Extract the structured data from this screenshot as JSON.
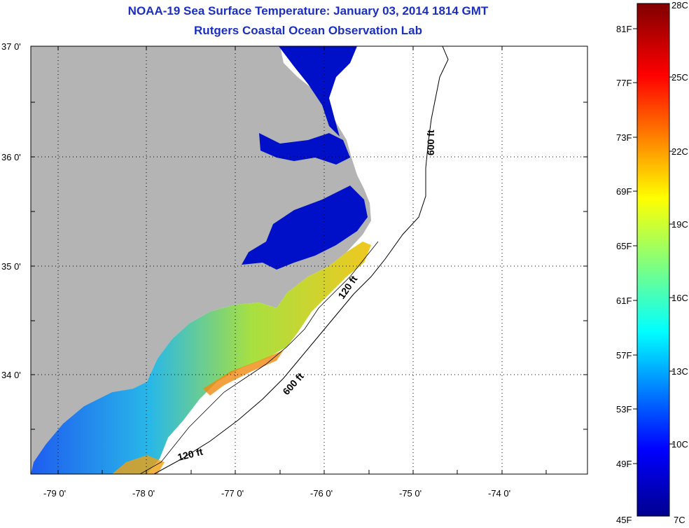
{
  "title": "NOAA-19 Sea Surface Temperature:  January 03, 2014 1814 GMT",
  "subtitle": "Rutgers Coastal Ocean Observation Lab",
  "lat_labels": [
    "37 0'",
    "36 0'",
    "35 0'",
    "34 0'"
  ],
  "lon_labels": [
    "-79 0'",
    "-78 0'",
    "-77 0'",
    "-76 0'",
    "-75 0'",
    "-74 0'"
  ],
  "isobath_labels": [
    "600 ft",
    "120 ft",
    "600 ft",
    "120 ft"
  ],
  "colorbar": {
    "fahrenheit": [
      "81F",
      "77F",
      "73F",
      "69F",
      "65F",
      "61F",
      "57F",
      "53F",
      "49F",
      "45F"
    ],
    "celsius": [
      "28C",
      "25C",
      "22C",
      "19C",
      "16C",
      "13C",
      "10C",
      "7C"
    ],
    "range_f": [
      45,
      83
    ],
    "range_c": [
      7,
      28
    ]
  },
  "colors": {
    "land": "#b4b4b4",
    "title": "#1a2fbf",
    "cold": "#0010c8",
    "warm": "#e04000"
  }
}
